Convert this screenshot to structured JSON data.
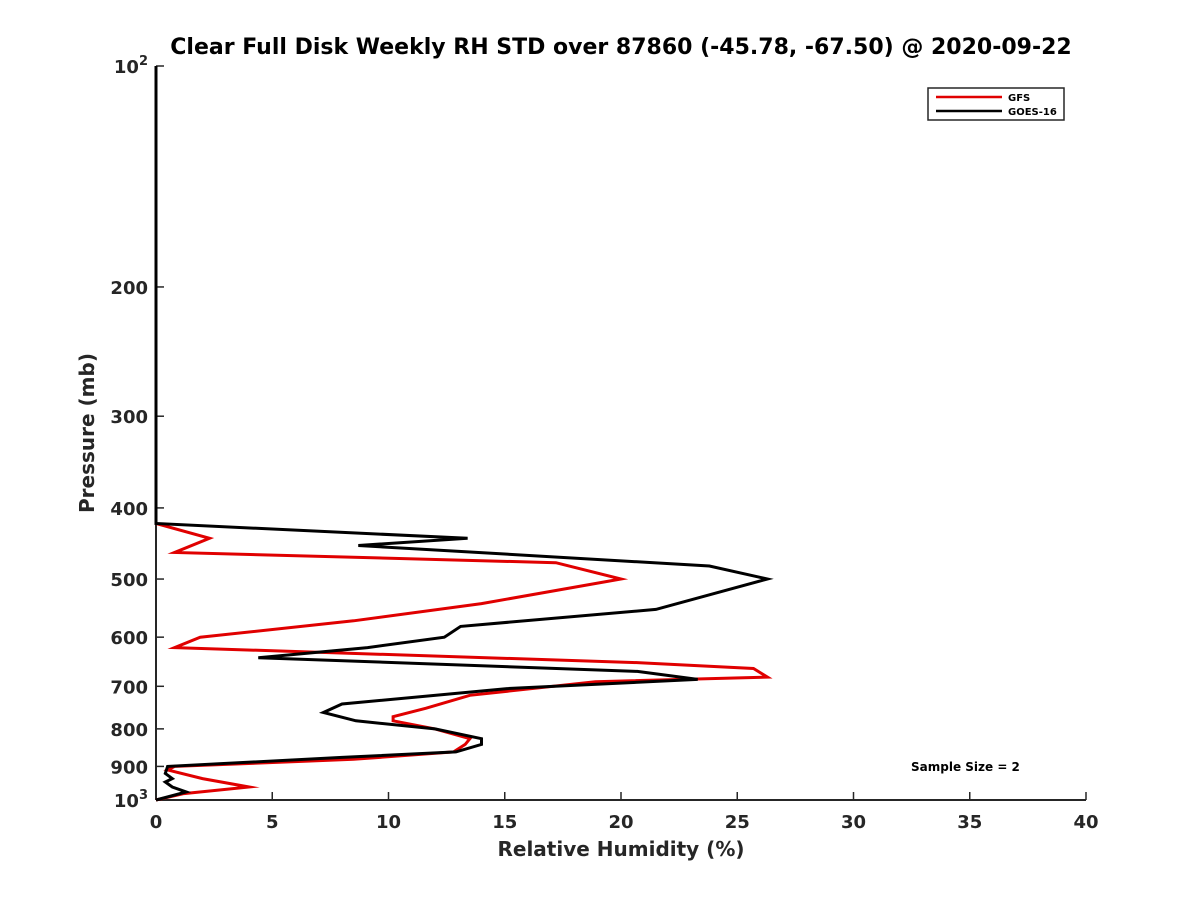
{
  "chart_data": {
    "type": "line",
    "title": "Clear Full Disk Weekly RH STD over 87860 (-45.78, -67.50) @ 2020-09-22",
    "xlabel": "Relative Humidity (%)",
    "ylabel": "Pressure (mb)",
    "xlim": [
      0,
      40
    ],
    "ylim": [
      100,
      1000
    ],
    "y_scale": "log",
    "y_reversed": true,
    "grid": false,
    "legend_position": "top-right",
    "x_ticks": [
      "0",
      "5",
      "10",
      "15",
      "20",
      "25",
      "30",
      "35",
      "40"
    ],
    "y_ticks": [
      {
        "value": 100,
        "base": "10",
        "exp": "2"
      },
      {
        "value": 200,
        "label": "200"
      },
      {
        "value": 300,
        "label": "300"
      },
      {
        "value": 400,
        "label": "400"
      },
      {
        "value": 500,
        "label": "500"
      },
      {
        "value": 600,
        "label": "600"
      },
      {
        "value": 700,
        "label": "700"
      },
      {
        "value": 800,
        "label": "800"
      },
      {
        "value": 900,
        "label": "900"
      },
      {
        "value": 1000,
        "base": "10",
        "exp": "3"
      }
    ],
    "annotation": "Sample Size = 2",
    "series": [
      {
        "name": "GFS",
        "color": "#e00000",
        "points": [
          [
            0,
            100
          ],
          [
            0,
            200
          ],
          [
            0,
            300
          ],
          [
            0,
            420
          ],
          [
            2.3,
            440
          ],
          [
            0.8,
            460
          ],
          [
            17.2,
            475
          ],
          [
            20.0,
            500
          ],
          [
            14.0,
            540
          ],
          [
            8.5,
            570
          ],
          [
            1.9,
            600
          ],
          [
            0.8,
            620
          ],
          [
            20.8,
            650
          ],
          [
            25.7,
            662
          ],
          [
            26.3,
            680
          ],
          [
            18.9,
            690
          ],
          [
            13.5,
            720
          ],
          [
            11.6,
            750
          ],
          [
            10.2,
            770
          ],
          [
            10.2,
            780
          ],
          [
            12.0,
            800
          ],
          [
            13.5,
            825
          ],
          [
            13.3,
            840
          ],
          [
            12.8,
            860
          ],
          [
            8.5,
            880
          ],
          [
            0.8,
            900
          ],
          [
            0.5,
            910
          ],
          [
            2.0,
            935
          ],
          [
            4.0,
            960
          ],
          [
            1.2,
            980
          ],
          [
            0,
            1000
          ]
        ]
      },
      {
        "name": "GOES-16",
        "color": "#000000",
        "points": [
          [
            0,
            100
          ],
          [
            0,
            200
          ],
          [
            0,
            300
          ],
          [
            0,
            420
          ],
          [
            13.4,
            440
          ],
          [
            8.7,
            450
          ],
          [
            23.8,
            480
          ],
          [
            26.3,
            500
          ],
          [
            21.5,
            550
          ],
          [
            13.1,
            580
          ],
          [
            12.4,
            600
          ],
          [
            9.1,
            620
          ],
          [
            4.4,
            640
          ],
          [
            20.7,
            668
          ],
          [
            23.3,
            685
          ],
          [
            15.1,
            705
          ],
          [
            8.0,
            740
          ],
          [
            7.2,
            760
          ],
          [
            8.6,
            780
          ],
          [
            12.0,
            800
          ],
          [
            14.0,
            825
          ],
          [
            14.0,
            840
          ],
          [
            12.9,
            860
          ],
          [
            8.0,
            875
          ],
          [
            0.5,
            900
          ],
          [
            0.4,
            920
          ],
          [
            0.7,
            935
          ],
          [
            0.4,
            945
          ],
          [
            0.7,
            960
          ],
          [
            1.3,
            975
          ],
          [
            0,
            1000
          ]
        ]
      }
    ]
  }
}
